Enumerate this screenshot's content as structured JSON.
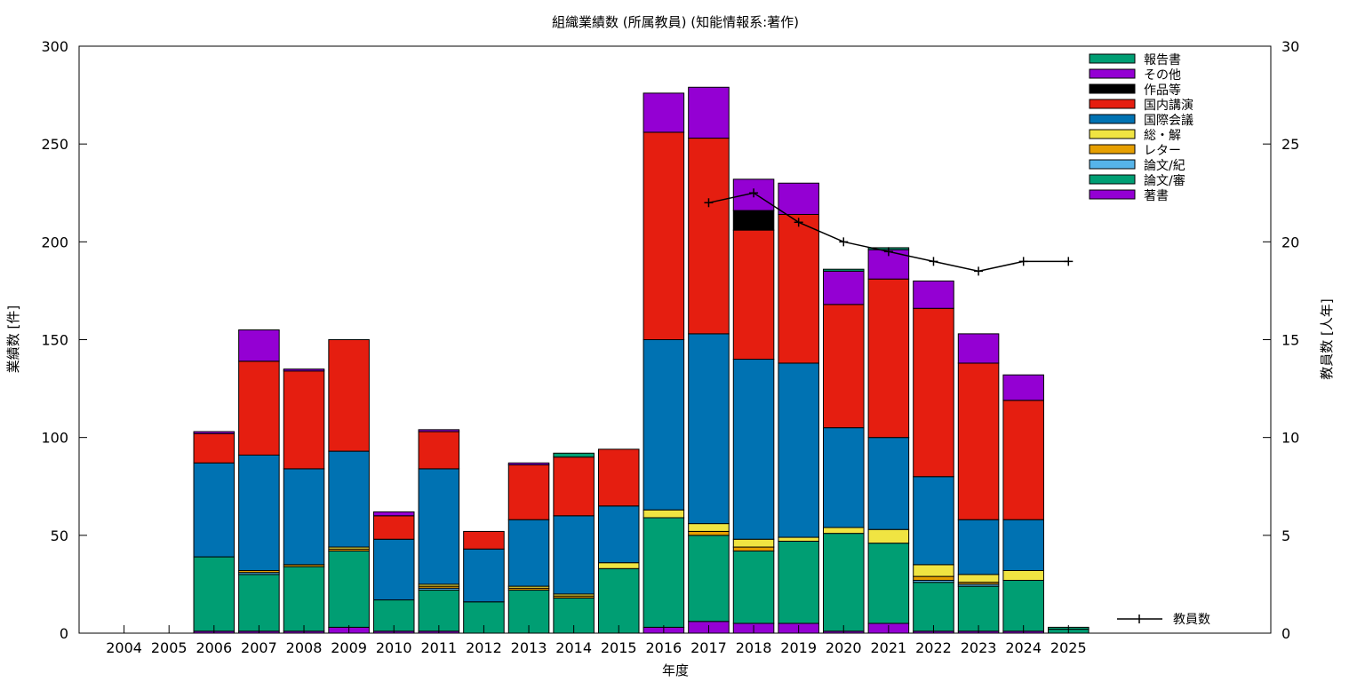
{
  "chart_data": {
    "type": "bar",
    "stacked": true,
    "title": "組織業績数 (所属教員) (知能情報系:著作)",
    "xlabel": "年度",
    "ylabel": "業績数 [件]",
    "y2label": "教員数 [人年]",
    "ylim": [
      0,
      300
    ],
    "y2lim": [
      0,
      30
    ],
    "yticks": [
      0,
      50,
      100,
      150,
      200,
      250,
      300
    ],
    "y2ticks": [
      0,
      5,
      10,
      15,
      20,
      25,
      30
    ],
    "grid": false,
    "legend_position": "top-right",
    "categories": [
      "2004",
      "2005",
      "2006",
      "2007",
      "2008",
      "2009",
      "2010",
      "2011",
      "2012",
      "2013",
      "2014",
      "2015",
      "2016",
      "2017",
      "2018",
      "2019",
      "2020",
      "2021",
      "2022",
      "2023",
      "2024",
      "2025"
    ],
    "series": [
      {
        "name": "著書",
        "color": "#9400d3",
        "values": [
          0,
          0,
          1,
          1,
          1,
          3,
          1,
          1,
          0,
          0,
          0,
          0,
          3,
          6,
          5,
          5,
          1,
          5,
          1,
          1,
          1,
          0
        ]
      },
      {
        "name": "論文/審",
        "color": "#009e73",
        "values": [
          0,
          0,
          38,
          29,
          33,
          39,
          16,
          21,
          16,
          22,
          18,
          33,
          56,
          44,
          37,
          42,
          50,
          41,
          25,
          23,
          26,
          2
        ]
      },
      {
        "name": "論文/紀",
        "color": "#56b4e9",
        "values": [
          0,
          0,
          0,
          1,
          0,
          0,
          0,
          1,
          0,
          0,
          0,
          0,
          0,
          0,
          0,
          0,
          0,
          0,
          1,
          1,
          0,
          0
        ]
      },
      {
        "name": "レター",
        "color": "#e69f00",
        "values": [
          0,
          0,
          0,
          1,
          1,
          1,
          0,
          1,
          0,
          1,
          1,
          0,
          0,
          2,
          2,
          0,
          0,
          0,
          2,
          1,
          0,
          0
        ]
      },
      {
        "name": "総・解",
        "color": "#f0e442",
        "values": [
          0,
          0,
          0,
          0,
          0,
          1,
          0,
          1,
          0,
          1,
          1,
          3,
          4,
          4,
          4,
          2,
          3,
          7,
          6,
          4,
          5,
          0
        ]
      },
      {
        "name": "国際会議",
        "color": "#0072b2",
        "values": [
          0,
          0,
          48,
          59,
          49,
          49,
          31,
          59,
          27,
          34,
          40,
          29,
          87,
          97,
          92,
          89,
          51,
          47,
          45,
          28,
          26,
          0
        ]
      },
      {
        "name": "国内講演",
        "color": "#e51e10",
        "values": [
          0,
          0,
          15,
          48,
          50,
          57,
          12,
          19,
          9,
          28,
          30,
          29,
          106,
          100,
          66,
          76,
          63,
          81,
          86,
          80,
          61,
          0
        ]
      },
      {
        "name": "作品等",
        "color": "#000000",
        "values": [
          0,
          0,
          0,
          0,
          0,
          0,
          0,
          0,
          0,
          0,
          0,
          0,
          0,
          0,
          10,
          0,
          0,
          0,
          0,
          0,
          0,
          0
        ]
      },
      {
        "name": "その他",
        "color": "#9400d3",
        "values": [
          0,
          0,
          1,
          16,
          1,
          0,
          2,
          1,
          0,
          1,
          0,
          0,
          20,
          26,
          16,
          16,
          17,
          15,
          14,
          15,
          13,
          0
        ]
      },
      {
        "name": "報告書",
        "color": "#009e73",
        "values": [
          0,
          0,
          0,
          0,
          0,
          0,
          0,
          0,
          0,
          0,
          2,
          0,
          0,
          0,
          0,
          0,
          1,
          1,
          0,
          0,
          0,
          1
        ]
      }
    ],
    "line_series": {
      "name": "教員数",
      "color": "#000000",
      "x": [
        "2017",
        "2018",
        "2019",
        "2020",
        "2021",
        "2022",
        "2023",
        "2024",
        "2025"
      ],
      "values": [
        22,
        22.5,
        21,
        20,
        19.5,
        19,
        18.5,
        19,
        19
      ]
    }
  }
}
